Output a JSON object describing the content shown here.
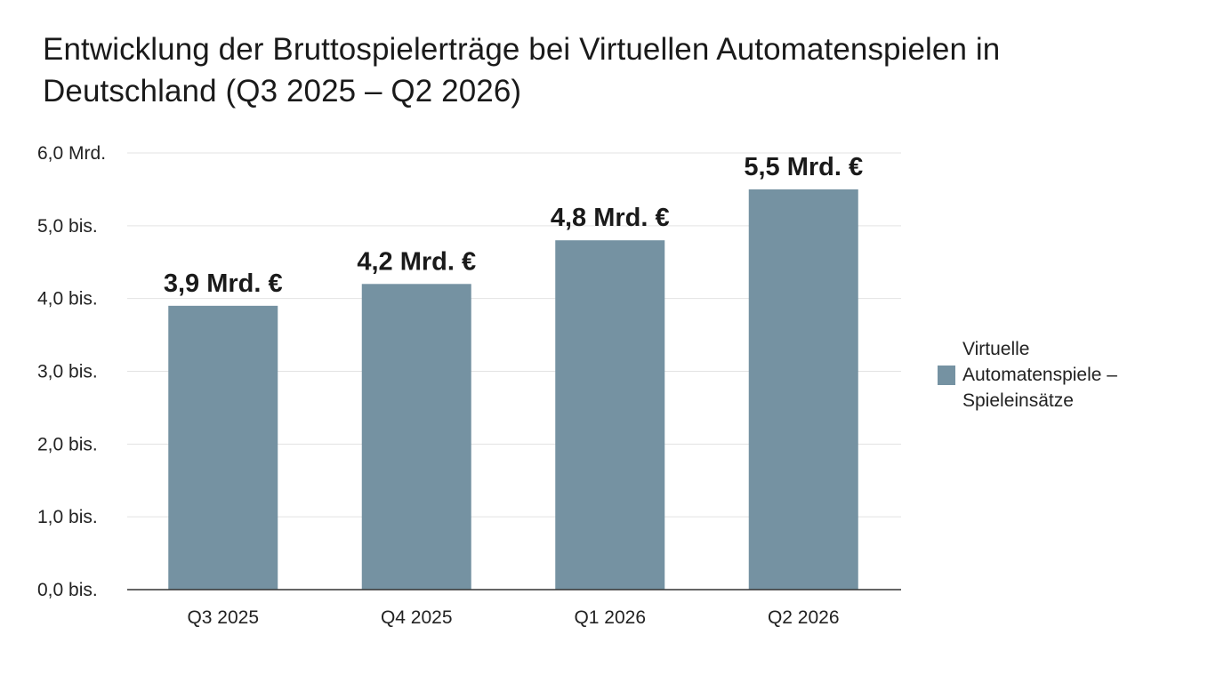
{
  "chart_data": {
    "type": "bar",
    "title": "Entwicklung der Bruttospielerträge bei Virtuellen Automatenspielen in Deutschland (Q3 2025 – Q2 2026)",
    "categories": [
      "Q3 2025",
      "Q4 2025",
      "Q1 2026",
      "Q2 2026"
    ],
    "series": [
      {
        "name": "Virtuelle Automatenspiele – Spieleinsätze",
        "values": [
          3.9,
          4.2,
          4.8,
          5.5
        ],
        "data_labels": [
          "3,9 Mrd. €",
          "4,2 Mrd. €",
          "4,8 Mrd. €",
          "5,5 Mrd. €"
        ],
        "color": "#7592a2"
      }
    ],
    "yticks": [
      0,
      1,
      2,
      3,
      4,
      5,
      6
    ],
    "ytick_labels": [
      "0,0 bis.",
      "1,0 bis.",
      "2,0 bis.",
      "3,0 bis.",
      "4,0 bis.",
      "5,0 bis.",
      "6,0 Mrd."
    ],
    "ylim": [
      0,
      6
    ],
    "xlabel": "",
    "ylabel": "",
    "grid": true,
    "legend_position": "right",
    "colors": {
      "gridline": "#e3e3e3",
      "axis": "#333333"
    }
  }
}
